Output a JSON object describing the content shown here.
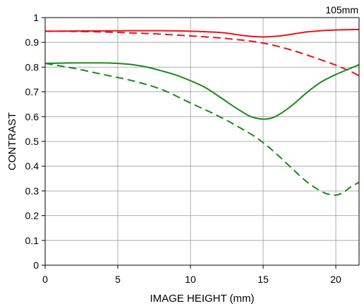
{
  "chart_data": {
    "type": "line",
    "title": "",
    "focal_length_label": "105mm",
    "xlabel": "IMAGE HEIGHT (mm)",
    "ylabel": "CONTRAST",
    "xlim": [
      0,
      21.6
    ],
    "ylim": [
      0,
      1
    ],
    "x_ticks": [
      "0",
      "5",
      "10",
      "15",
      "20"
    ],
    "x_tick_values": [
      0,
      5,
      10,
      15,
      20
    ],
    "y_ticks": [
      "0",
      "0.1",
      "0.2",
      "0.3",
      "0.4",
      "0.5",
      "0.6",
      "0.7",
      "0.8",
      "0.9",
      "1"
    ],
    "y_tick_values": [
      0,
      0.1,
      0.2,
      0.3,
      0.4,
      0.5,
      0.6,
      0.7,
      0.8,
      0.9,
      1.0
    ],
    "grid": true,
    "legend": "none",
    "series": [
      {
        "color": "#e8141b",
        "style": "solid",
        "x": [
          0,
          3,
          6,
          8,
          10,
          12,
          13,
          14,
          15,
          16,
          17,
          18,
          19,
          20,
          21.6
        ],
        "y": [
          0.945,
          0.946,
          0.947,
          0.947,
          0.945,
          0.94,
          0.933,
          0.925,
          0.922,
          0.925,
          0.933,
          0.942,
          0.947,
          0.95,
          0.952
        ]
      },
      {
        "color": "#e8141b",
        "style": "dashed",
        "x": [
          0,
          2,
          4,
          6,
          8,
          10,
          12,
          14,
          15,
          16,
          17,
          18,
          19,
          20,
          21,
          21.6
        ],
        "y": [
          0.945,
          0.944,
          0.942,
          0.938,
          0.933,
          0.926,
          0.918,
          0.906,
          0.897,
          0.884,
          0.868,
          0.849,
          0.829,
          0.808,
          0.783,
          0.765
        ]
      },
      {
        "color": "#1a8a1a",
        "style": "solid",
        "x": [
          0,
          2,
          4,
          5,
          6,
          7,
          8,
          9,
          10,
          11,
          12,
          13,
          14,
          14.5,
          15,
          15.5,
          16,
          17,
          18,
          19,
          20,
          21,
          21.6
        ],
        "y": [
          0.815,
          0.817,
          0.817,
          0.815,
          0.81,
          0.8,
          0.785,
          0.768,
          0.745,
          0.718,
          0.68,
          0.64,
          0.604,
          0.594,
          0.59,
          0.593,
          0.605,
          0.646,
          0.697,
          0.74,
          0.77,
          0.795,
          0.81
        ]
      },
      {
        "color": "#1a8a1a",
        "style": "dashed",
        "x": [
          0,
          2,
          4,
          6,
          8,
          10,
          12,
          14,
          15,
          16,
          17,
          18,
          19,
          19.5,
          20,
          20.5,
          21,
          21.6
        ],
        "y": [
          0.815,
          0.795,
          0.77,
          0.745,
          0.71,
          0.655,
          0.6,
          0.535,
          0.495,
          0.445,
          0.39,
          0.337,
          0.298,
          0.287,
          0.283,
          0.293,
          0.315,
          0.335
        ]
      }
    ]
  }
}
